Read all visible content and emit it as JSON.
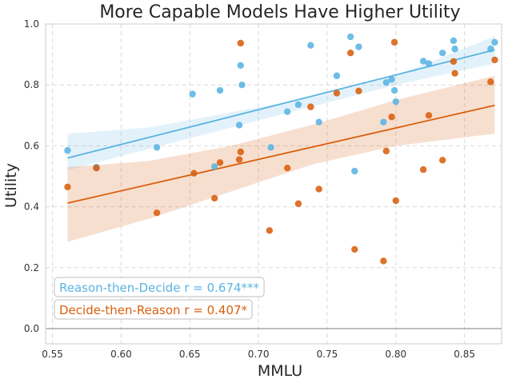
{
  "chart_data": {
    "type": "scatter",
    "title": "More Capable Models Have Higher Utility",
    "xlabel": "MMLU",
    "ylabel": "Utility",
    "xlim": [
      0.545,
      0.877
    ],
    "ylim": [
      -0.05,
      1.0
    ],
    "xticks": [
      "0.55",
      "0.60",
      "0.65",
      "0.70",
      "0.75",
      "0.80",
      "0.85"
    ],
    "yticks": [
      "0.0",
      "0.2",
      "0.4",
      "0.6",
      "0.8",
      "1.0"
    ],
    "xtick_values": [
      0.55,
      0.6,
      0.65,
      0.7,
      0.75,
      0.8,
      0.85
    ],
    "ytick_values": [
      0.0,
      0.2,
      0.4,
      0.6,
      0.8,
      1.0
    ],
    "grid": true,
    "reference_line_y": 0.0,
    "series": [
      {
        "name": "Reason-then-Decide",
        "color": "#5ab4e2",
        "annotation": "Reason-then-Decide r = 0.674***",
        "fit": {
          "x": [
            0.561,
            0.872
          ],
          "y": [
            0.56,
            0.915
          ]
        },
        "band_upper": [
          [
            0.561,
            0.64
          ],
          [
            0.62,
            0.66
          ],
          [
            0.68,
            0.71
          ],
          [
            0.74,
            0.76
          ],
          [
            0.8,
            0.83
          ],
          [
            0.872,
            0.96
          ]
        ],
        "band_lower": [
          [
            0.561,
            0.52
          ],
          [
            0.62,
            0.59
          ],
          [
            0.68,
            0.66
          ],
          [
            0.74,
            0.73
          ],
          [
            0.8,
            0.8
          ],
          [
            0.872,
            0.87
          ]
        ],
        "points": [
          [
            0.561,
            0.585
          ],
          [
            0.582,
            0.53
          ],
          [
            0.626,
            0.595
          ],
          [
            0.652,
            0.77
          ],
          [
            0.672,
            0.782
          ],
          [
            0.686,
            0.668
          ],
          [
            0.687,
            0.864
          ],
          [
            0.688,
            0.8
          ],
          [
            0.709,
            0.595
          ],
          [
            0.721,
            0.712
          ],
          [
            0.729,
            0.735
          ],
          [
            0.738,
            0.93
          ],
          [
            0.744,
            0.678
          ],
          [
            0.757,
            0.83
          ],
          [
            0.767,
            0.958
          ],
          [
            0.77,
            0.517
          ],
          [
            0.773,
            0.925
          ],
          [
            0.791,
            0.678
          ],
          [
            0.793,
            0.808
          ],
          [
            0.797,
            0.818
          ],
          [
            0.799,
            0.782
          ],
          [
            0.8,
            0.745
          ],
          [
            0.82,
            0.878
          ],
          [
            0.824,
            0.87
          ],
          [
            0.834,
            0.905
          ],
          [
            0.842,
            0.945
          ],
          [
            0.843,
            0.918
          ],
          [
            0.869,
            0.918
          ],
          [
            0.872,
            0.94
          ],
          [
            0.668,
            0.532
          ]
        ]
      },
      {
        "name": "Decide-then-Reason",
        "color": "#d95f0e",
        "annotation": "Decide-then-Reason r = 0.407*",
        "fit": {
          "x": [
            0.561,
            0.872
          ],
          "y": [
            0.412,
            0.733
          ]
        },
        "band_upper": [
          [
            0.561,
            0.53
          ],
          [
            0.62,
            0.55
          ],
          [
            0.68,
            0.6
          ],
          [
            0.74,
            0.67
          ],
          [
            0.8,
            0.75
          ],
          [
            0.872,
            0.83
          ]
        ],
        "band_lower": [
          [
            0.561,
            0.285
          ],
          [
            0.62,
            0.36
          ],
          [
            0.68,
            0.45
          ],
          [
            0.74,
            0.54
          ],
          [
            0.8,
            0.6
          ],
          [
            0.872,
            0.64
          ]
        ],
        "points": [
          [
            0.561,
            0.465
          ],
          [
            0.582,
            0.527
          ],
          [
            0.626,
            0.38
          ],
          [
            0.653,
            0.51
          ],
          [
            0.668,
            0.428
          ],
          [
            0.672,
            0.545
          ],
          [
            0.686,
            0.555
          ],
          [
            0.687,
            0.58
          ],
          [
            0.687,
            0.937
          ],
          [
            0.708,
            0.322
          ],
          [
            0.721,
            0.527
          ],
          [
            0.729,
            0.41
          ],
          [
            0.738,
            0.728
          ],
          [
            0.744,
            0.458
          ],
          [
            0.757,
            0.773
          ],
          [
            0.767,
            0.905
          ],
          [
            0.77,
            0.26
          ],
          [
            0.773,
            0.78
          ],
          [
            0.791,
            0.222
          ],
          [
            0.793,
            0.583
          ],
          [
            0.797,
            0.695
          ],
          [
            0.799,
            0.94
          ],
          [
            0.8,
            0.42
          ],
          [
            0.82,
            0.522
          ],
          [
            0.824,
            0.7
          ],
          [
            0.834,
            0.553
          ],
          [
            0.842,
            0.877
          ],
          [
            0.843,
            0.838
          ],
          [
            0.869,
            0.81
          ],
          [
            0.872,
            0.882
          ]
        ]
      }
    ]
  }
}
